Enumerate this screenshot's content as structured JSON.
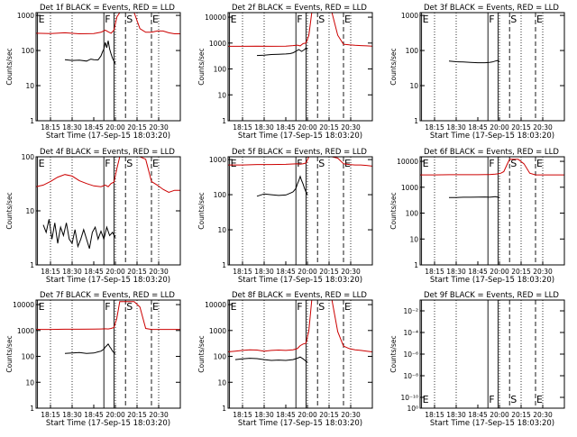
{
  "chart_data": {
    "type": "line",
    "layout": "3x3 grid",
    "x_ticks": [
      "18:15",
      "18:30",
      "18:45",
      "20:00",
      "20:15",
      "20:30"
    ],
    "x_tick_values": [
      0,
      15,
      30,
      45,
      60,
      75
    ],
    "xlim": [
      -10,
      90
    ],
    "xlabel": "Start Time (17-Sep-15 18:03:20)",
    "ylabel": "Counts/sec",
    "markers": [
      {
        "label": "E",
        "x": -9,
        "style": "solid"
      },
      {
        "label": "F",
        "x": 37,
        "style": "solid"
      },
      {
        "label": "",
        "x": 44,
        "style": "solid"
      },
      {
        "label": "S",
        "x": 52,
        "style": "dashed"
      },
      {
        "label": "E",
        "x": 70,
        "style": "dashed"
      }
    ],
    "dotted_lines_x": [
      0,
      15,
      45,
      60,
      75
    ],
    "series_colors": {
      "events": "#000000",
      "lld": "#cc0000"
    },
    "panels": [
      {
        "title": "Det 1f BLACK = Events, RED = LLD",
        "ylim": [
          1,
          1200
        ],
        "y_ticks": [
          "1",
          "10",
          "100",
          "1000"
        ],
        "y_tick_values": [
          1,
          10,
          100,
          1000
        ],
        "series": [
          {
            "name": "LLD",
            "color": "#cc0000",
            "x": [
              -10,
              0,
              10,
              20,
              30,
              35,
              38,
              40,
              42,
              44,
              46,
              48,
              50,
              52,
              54,
              58,
              62,
              66,
              70,
              74,
              78,
              82,
              86,
              90
            ],
            "y": [
              310,
              305,
              320,
              300,
              305,
              330,
              380,
              340,
              310,
              380,
              900,
              1200,
              1200,
              1200,
              1200,
              1200,
              420,
              330,
              330,
              360,
              360,
              320,
              300,
              300
            ]
          },
          {
            "name": "Events",
            "color": "#000000",
            "x": [
              10,
              15,
              20,
              25,
              28,
              30,
              33,
              35,
              36,
              37,
              38,
              39,
              40,
              41,
              42,
              43,
              44,
              45
            ],
            "y": [
              55,
              52,
              53,
              50,
              57,
              55,
              54,
              70,
              90,
              110,
              170,
              120,
              190,
              110,
              80,
              60,
              50,
              42
            ]
          }
        ]
      },
      {
        "title": "Det 2f BLACK = Events, RED = LLD",
        "ylim": [
          1,
          15000
        ],
        "y_ticks": [
          "1",
          "10",
          "100",
          "1000",
          "10000"
        ],
        "y_tick_values": [
          1,
          10,
          100,
          1000,
          10000
        ],
        "series": [
          {
            "name": "LLD",
            "color": "#cc0000",
            "x": [
              -10,
              0,
              10,
              20,
              30,
              35,
              38,
              40,
              42,
              44,
              46,
              48,
              50,
              52,
              54,
              58,
              62,
              66,
              70,
              74,
              78,
              82,
              86,
              90
            ],
            "y": [
              750,
              750,
              760,
              750,
              760,
              800,
              830,
              780,
              950,
              1000,
              2000,
              15000,
              15000,
              15000,
              15000,
              15000,
              15000,
              2000,
              900,
              850,
              820,
              800,
              780,
              760
            ]
          },
          {
            "name": "Events",
            "color": "#000000",
            "x": [
              10,
              15,
              20,
              25,
              30,
              33,
              35,
              37,
              39,
              40,
              41,
              42,
              43,
              44,
              45
            ],
            "y": [
              330,
              340,
              360,
              370,
              380,
              390,
              420,
              480,
              560,
              520,
              480,
              520,
              560,
              650,
              580
            ]
          }
        ]
      },
      {
        "title": "Det 3f BLACK = Events, RED = LLD",
        "ylim": [
          1,
          1200
        ],
        "y_ticks": [
          "1",
          "10",
          "100",
          "1000"
        ],
        "y_tick_values": [
          1,
          10,
          100,
          1000
        ],
        "series": [
          {
            "name": "Events",
            "color": "#000000",
            "x": [
              10,
              15,
              20,
              25,
              30,
              35,
              38,
              40,
              42,
              44,
              45
            ],
            "y": [
              50,
              48,
              47,
              46,
              45,
              45,
              46,
              47,
              50,
              52,
              48
            ]
          }
        ]
      },
      {
        "title": "Det 4f BLACK = Events, RED = LLD",
        "ylim": [
          1,
          100
        ],
        "y_ticks": [
          "1",
          "10",
          "100"
        ],
        "y_tick_values": [
          1,
          10,
          100
        ],
        "series": [
          {
            "name": "LLD",
            "color": "#cc0000",
            "x": [
              -10,
              -5,
              0,
              5,
              10,
              15,
              20,
              25,
              30,
              35,
              38,
              40,
              42,
              44,
              46,
              48,
              50,
              52,
              54,
              58,
              62,
              66,
              70,
              74,
              78,
              82,
              86,
              90
            ],
            "y": [
              28,
              30,
              35,
              42,
              47,
              44,
              36,
              32,
              29,
              28,
              30,
              28,
              32,
              34,
              60,
              100,
              100,
              100,
              100,
              100,
              100,
              90,
              35,
              30,
              25,
              22,
              24,
              24
            ]
          },
          {
            "name": "Events",
            "color": "#000000",
            "x": [
              -5,
              -3,
              -1,
              1,
              3,
              5,
              7,
              9,
              11,
              13,
              15,
              17,
              19,
              21,
              23,
              25,
              27,
              29,
              31,
              33,
              35,
              37,
              39,
              41,
              43,
              45
            ],
            "y": [
              5.5,
              4,
              7,
              3,
              6,
              2.5,
              5,
              3.5,
              6,
              3,
              2.5,
              4.5,
              2.2,
              3,
              4.5,
              3,
              2,
              4,
              5,
              3,
              4.2,
              3,
              5,
              3.5,
              4,
              3.2
            ]
          }
        ]
      },
      {
        "title": "Det 5f BLACK = Events, RED = LLD",
        "ylim": [
          1,
          1200
        ],
        "y_ticks": [
          "1",
          "10",
          "100",
          "1000"
        ],
        "y_tick_values": [
          1,
          10,
          100,
          1000
        ],
        "series": [
          {
            "name": "LLD",
            "color": "#cc0000",
            "x": [
              -10,
              0,
              10,
              20,
              30,
              35,
              38,
              40,
              42,
              44,
              46,
              48,
              50,
              52,
              54,
              58,
              62,
              66,
              70,
              74,
              78,
              82,
              86,
              90
            ],
            "y": [
              700,
              700,
              720,
              720,
              730,
              750,
              760,
              740,
              760,
              800,
              1200,
              1200,
              1200,
              1200,
              1200,
              1200,
              1200,
              1100,
              760,
              720,
              700,
              700,
              680,
              650
            ]
          },
          {
            "name": "Events",
            "color": "#000000",
            "x": [
              10,
              15,
              20,
              25,
              30,
              33,
              35,
              37,
              38,
              39,
              40,
              41,
              42,
              43,
              44,
              45
            ],
            "y": [
              90,
              105,
              100,
              95,
              98,
              110,
              120,
              150,
              200,
              250,
              330,
              250,
              200,
              150,
              120,
              100
            ]
          }
        ]
      },
      {
        "title": "Det 6f BLACK = Events, RED = LLD",
        "ylim": [
          1,
          15000
        ],
        "y_ticks": [
          "1",
          "10",
          "100",
          "1000",
          "10000"
        ],
        "y_tick_values": [
          1,
          10,
          100,
          1000,
          10000
        ],
        "series": [
          {
            "name": "LLD",
            "color": "#cc0000",
            "x": [
              -10,
              0,
              10,
              20,
              30,
              35,
              38,
              40,
              42,
              44,
              46,
              48,
              50,
              52,
              54,
              58,
              62,
              66,
              70,
              74,
              78,
              82,
              86,
              90
            ],
            "y": [
              3000,
              3000,
              3050,
              3050,
              3050,
              3100,
              3100,
              3150,
              3200,
              3300,
              3500,
              4000,
              7000,
              12000,
              12000,
              12000,
              8000,
              3500,
              3000,
              3000,
              3000,
              3000,
              3000,
              3000
            ]
          },
          {
            "name": "Events",
            "color": "#000000",
            "x": [
              10,
              15,
              20,
              25,
              30,
              35,
              38,
              40,
              42,
              44,
              45
            ],
            "y": [
              400,
              400,
              410,
              410,
              415,
              420,
              410,
              420,
              430,
              410,
              400
            ]
          }
        ]
      },
      {
        "title": "Det 7f BLACK = Events, RED = LLD",
        "ylim": [
          1,
          15000
        ],
        "y_ticks": [
          "1",
          "10",
          "100",
          "1000",
          "10000"
        ],
        "y_tick_values": [
          1,
          10,
          100,
          1000,
          10000
        ],
        "series": [
          {
            "name": "LLD",
            "color": "#cc0000",
            "x": [
              -10,
              0,
              10,
              20,
              30,
              35,
              38,
              40,
              42,
              44,
              46,
              48,
              50,
              52,
              54,
              58,
              62,
              66,
              70,
              74,
              78,
              82,
              86,
              90
            ],
            "y": [
              1100,
              1100,
              1120,
              1120,
              1130,
              1150,
              1160,
              1150,
              1200,
              1300,
              3000,
              13000,
              13000,
              13000,
              13000,
              13000,
              8000,
              1200,
              1100,
              1100,
              1100,
              1100,
              1100,
              1100
            ]
          },
          {
            "name": "Events",
            "color": "#000000",
            "x": [
              10,
              15,
              20,
              25,
              30,
              33,
              35,
              37,
              38,
              39,
              40,
              41,
              42,
              43,
              44,
              45
            ],
            "y": [
              130,
              135,
              140,
              130,
              135,
              150,
              160,
              190,
              230,
              260,
              300,
              240,
              200,
              160,
              140,
              130
            ]
          }
        ]
      },
      {
        "title": "Det 8f BLACK = Events, RED = LLD",
        "ylim": [
          1,
          15000
        ],
        "y_ticks": [
          "1",
          "10",
          "100",
          "1000",
          "10000"
        ],
        "y_tick_values": [
          1,
          10,
          100,
          1000,
          10000
        ],
        "series": [
          {
            "name": "LLD",
            "color": "#cc0000",
            "x": [
              -10,
              -5,
              0,
              5,
              10,
              15,
              20,
              25,
              30,
              35,
              38,
              40,
              42,
              44,
              46,
              48,
              50,
              52,
              54,
              58,
              62,
              66,
              70,
              74,
              78,
              82,
              86,
              90
            ],
            "y": [
              150,
              160,
              170,
              180,
              175,
              160,
              170,
              175,
              170,
              180,
              200,
              260,
              300,
              320,
              1000,
              15000,
              15000,
              15000,
              15000,
              15000,
              15000,
              900,
              250,
              200,
              180,
              170,
              160,
              150
            ]
          },
          {
            "name": "Events",
            "color": "#000000",
            "x": [
              -5,
              0,
              5,
              10,
              15,
              20,
              25,
              30,
              35,
              38,
              40,
              42,
              44,
              45
            ],
            "y": [
              75,
              80,
              85,
              82,
              75,
              70,
              72,
              70,
              75,
              85,
              95,
              80,
              65,
              60
            ]
          }
        ]
      },
      {
        "title": "Det 9f BLACK = Events, RED = LLD",
        "ylim": [
          1e-11,
          0.1
        ],
        "y_ticks": [
          "10⁻¹⁰",
          "10⁻⁸",
          "10⁻⁶",
          "10⁻⁴",
          "10⁻²"
        ],
        "y_tick_values": [
          1e-10,
          1e-08,
          1e-06,
          0.0001,
          0.01
        ],
        "bottom_tick": "10⁰",
        "marker_labels_bottom": true,
        "series": []
      }
    ]
  }
}
